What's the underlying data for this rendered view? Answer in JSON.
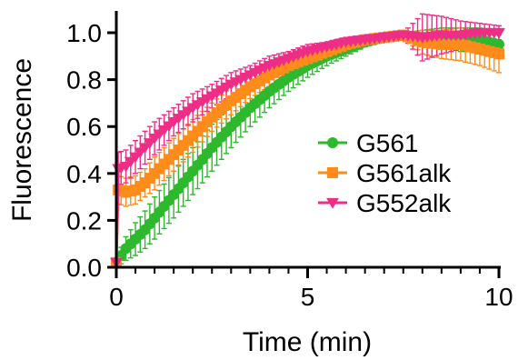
{
  "chart_data": {
    "type": "line",
    "title": "",
    "xlabel": "Time (min)",
    "ylabel": "Fluorescence",
    "xlim": [
      0,
      10
    ],
    "ylim": [
      0,
      1.05
    ],
    "x_ticks": [
      0,
      5,
      10
    ],
    "x_tick_labels": [
      "0",
      "5",
      "10"
    ],
    "y_ticks": [
      0.0,
      0.2,
      0.4,
      0.6,
      0.8,
      1.0
    ],
    "y_tick_labels": [
      "0.0",
      "0.2",
      "0.4",
      "0.6",
      "0.8",
      "1.0"
    ],
    "grid": false,
    "legend_position": "center-right",
    "series": [
      {
        "name": "G561",
        "color": "#2DB82D",
        "marker": "circle",
        "x": [
          0,
          0.25,
          0.5,
          0.75,
          1.0,
          1.5,
          2.0,
          2.5,
          3.0,
          3.5,
          4.0,
          4.5,
          5.0,
          5.5,
          6.0,
          6.5,
          7.0,
          7.5,
          8.0,
          8.5,
          9.0,
          9.5,
          10.0
        ],
        "y": [
          0.02,
          0.08,
          0.12,
          0.16,
          0.21,
          0.31,
          0.41,
          0.51,
          0.6,
          0.68,
          0.75,
          0.81,
          0.86,
          0.9,
          0.93,
          0.96,
          0.98,
          0.99,
          0.98,
          0.98,
          0.97,
          0.97,
          0.95
        ],
        "error": [
          0.02,
          0.05,
          0.07,
          0.08,
          0.09,
          0.1,
          0.1,
          0.1,
          0.09,
          0.08,
          0.07,
          0.06,
          0.05,
          0.04,
          0.03,
          0.02,
          0.01,
          0.01,
          0.03,
          0.04,
          0.05,
          0.05,
          0.06
        ]
      },
      {
        "name": "G561alk",
        "color": "#FF8C1A",
        "marker": "square",
        "x": [
          0,
          0.05,
          0.25,
          0.5,
          0.75,
          1.0,
          1.5,
          2.0,
          2.5,
          3.0,
          3.5,
          4.0,
          4.5,
          5.0,
          5.5,
          6.0,
          6.5,
          7.0,
          7.5,
          8.0,
          8.5,
          9.0,
          9.5,
          10.0
        ],
        "y": [
          0.02,
          0.33,
          0.32,
          0.33,
          0.36,
          0.4,
          0.48,
          0.56,
          0.64,
          0.71,
          0.77,
          0.82,
          0.86,
          0.89,
          0.92,
          0.95,
          0.97,
          0.98,
          0.99,
          0.96,
          0.95,
          0.95,
          0.93,
          0.91
        ],
        "error": [
          0.02,
          0.06,
          0.06,
          0.06,
          0.06,
          0.07,
          0.07,
          0.07,
          0.06,
          0.06,
          0.05,
          0.05,
          0.04,
          0.04,
          0.03,
          0.03,
          0.02,
          0.02,
          0.01,
          0.05,
          0.06,
          0.07,
          0.07,
          0.08
        ]
      },
      {
        "name": "G552alk",
        "color": "#EE2E86",
        "marker": "triangle-down",
        "x": [
          0,
          0.05,
          0.25,
          0.5,
          0.75,
          1.0,
          1.5,
          2.0,
          2.5,
          3.0,
          3.5,
          4.0,
          4.5,
          5.0,
          5.5,
          6.0,
          6.5,
          7.0,
          7.5,
          8.0,
          8.5,
          9.0,
          9.5,
          10.0
        ],
        "y": [
          0.02,
          0.42,
          0.43,
          0.47,
          0.51,
          0.55,
          0.62,
          0.68,
          0.73,
          0.78,
          0.82,
          0.86,
          0.89,
          0.92,
          0.94,
          0.96,
          0.97,
          0.98,
          0.99,
          0.98,
          0.99,
          0.99,
          1.0,
          1.0
        ],
        "error": [
          0.02,
          0.07,
          0.07,
          0.07,
          0.07,
          0.07,
          0.06,
          0.06,
          0.05,
          0.05,
          0.04,
          0.04,
          0.03,
          0.03,
          0.02,
          0.02,
          0.02,
          0.01,
          0.01,
          0.1,
          0.08,
          0.06,
          0.04,
          0.03
        ]
      }
    ]
  }
}
